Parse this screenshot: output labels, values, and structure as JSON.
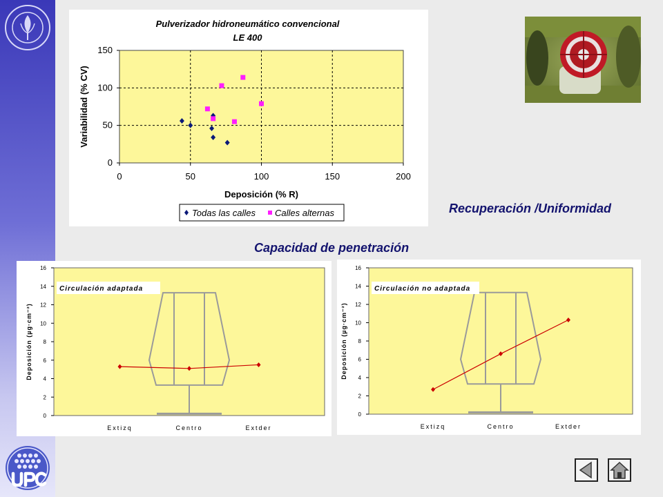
{
  "headings": {
    "recuperacion": "Recuperación /Uniformidad",
    "penetracion": "Capacidad de penetración"
  },
  "colors": {
    "plot_bg": "#fdf79a",
    "series_diamond": "#0a1978",
    "series_square": "#ff1eff",
    "line_red": "#cc0000",
    "heading": "#13136e"
  },
  "icons": {
    "seal": "escola-superior-agricultura-seal",
    "logo": "upc-logo",
    "back": "back-arrow-icon",
    "home": "home-icon"
  },
  "chart_data": [
    {
      "type": "scatter",
      "title": "Pulverizador hidroneumático convencional",
      "subtitle": "LE 400",
      "xlabel": "Deposición (% R)",
      "ylabel": "Variabilidad (% CV)",
      "xlim": [
        0,
        200
      ],
      "ylim": [
        0,
        150
      ],
      "xticks": [
        0,
        50,
        100,
        150,
        200
      ],
      "yticks": [
        0,
        50,
        100,
        150
      ],
      "grid": "dashed",
      "legend_position": "bottom",
      "series": [
        {
          "name": "Todas las calles",
          "marker": "diamond",
          "points": [
            [
              44,
              56
            ],
            [
              50,
              50
            ],
            [
              66,
              63
            ],
            [
              65,
              46
            ],
            [
              66,
              34
            ],
            [
              76,
              27
            ]
          ]
        },
        {
          "name": "Calles alternas",
          "marker": "square",
          "points": [
            [
              62,
              72
            ],
            [
              66,
              59
            ],
            [
              72,
              103
            ],
            [
              81,
              55
            ],
            [
              87,
              114
            ],
            [
              100,
              79
            ]
          ]
        }
      ]
    },
    {
      "type": "line",
      "annotation": "Circulación adaptada",
      "ylabel": "Deposición (µg·cm⁻²)",
      "categories": [
        "Extizq",
        "Centro",
        "Extder"
      ],
      "values": [
        5.3,
        5.1,
        5.5
      ],
      "ylim": [
        0,
        16
      ],
      "yticks": [
        0,
        2,
        4,
        6,
        8,
        10,
        12,
        14,
        16
      ]
    },
    {
      "type": "line",
      "annotation": "Circulación no adaptada",
      "ylabel": "Deposición (µg·cm⁻²)",
      "categories": [
        "Extizq",
        "Centro",
        "Extder"
      ],
      "values": [
        2.7,
        6.6,
        10.3
      ],
      "ylim": [
        0,
        16
      ],
      "yticks": [
        0,
        2,
        4,
        6,
        8,
        10,
        12,
        14,
        16
      ]
    }
  ]
}
